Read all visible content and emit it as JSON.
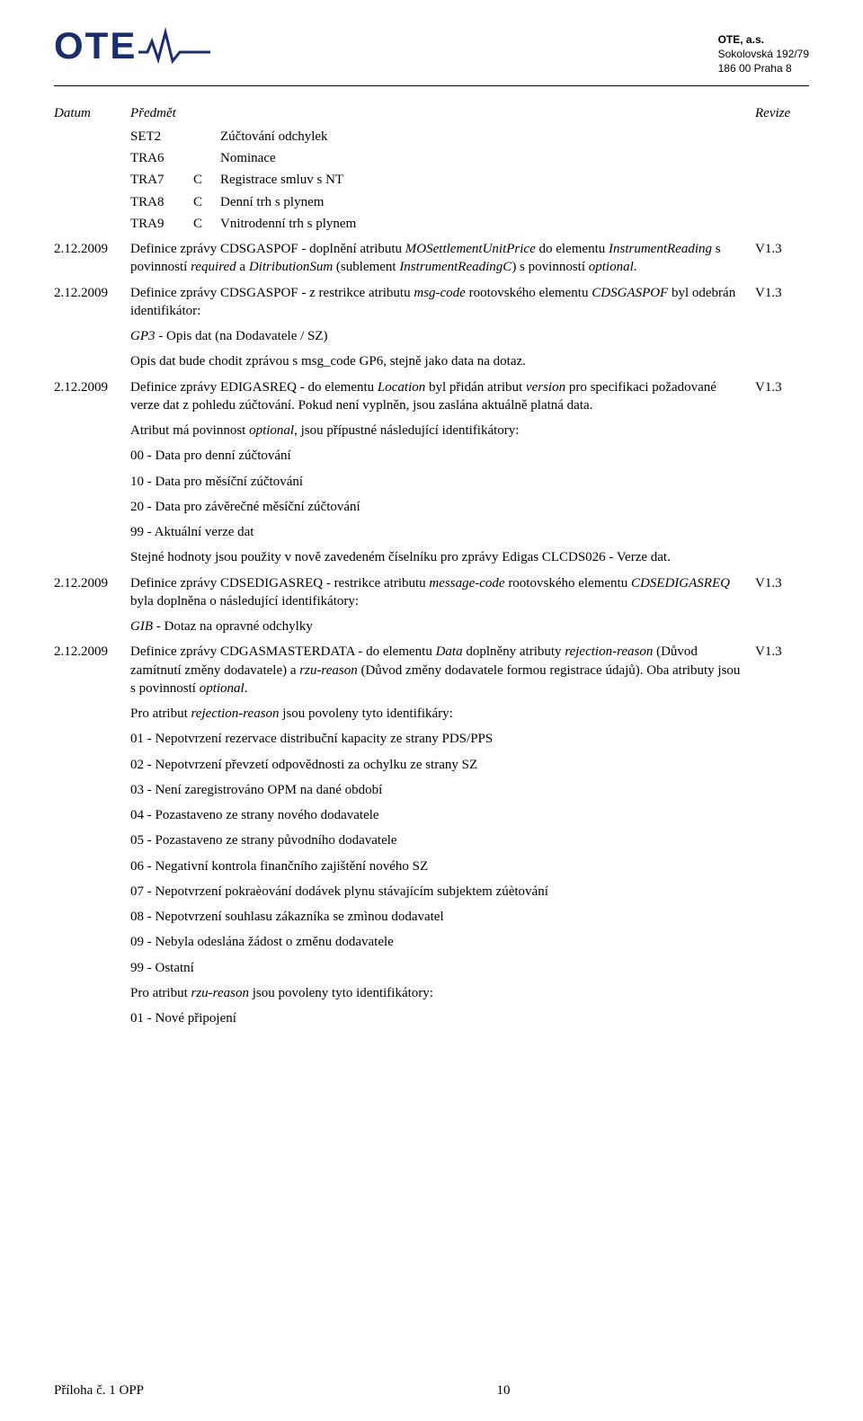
{
  "company": {
    "logo_text": "OTE",
    "name": "OTE, a.s.",
    "address1": "Sokolovská 192/79",
    "address2": "186 00 Praha 8",
    "logo_color": "#1a2e6b"
  },
  "col_headers": {
    "date": "Datum",
    "subject": "Předmět",
    "revision": "Revize"
  },
  "intro_codes": [
    {
      "c1": "SET2",
      "c2": "",
      "c3": "Zúčtování odchylek"
    },
    {
      "c1": "TRA6",
      "c2": "",
      "c3": "Nominace"
    },
    {
      "c1": "TRA7",
      "c2": "C",
      "c3": "Registrace smluv s NT"
    },
    {
      "c1": "TRA8",
      "c2": "C",
      "c3": "Denní trh s plynem"
    },
    {
      "c1": "TRA9",
      "c2": "C",
      "c3": "Vnitrodenní trh s plynem"
    }
  ],
  "entries": [
    {
      "date": "2.12.2009",
      "rev": "V1.3",
      "body_html": "Definice zprávy CDSGASPOF - doplnění atributu <span class=\"it\">MOSettlementUnitPrice</span> do elementu <span class=\"it\">InstrumentReading</span> s povinností <span class=\"it\">required</span> a <span class=\"it\">DitributionSum</span> (sublement <span class=\"it\">InstrumentReadingC</span>) s povinností <span class=\"it\">optional</span>.",
      "paras": []
    },
    {
      "date": "2.12.2009",
      "rev": "V1.3",
      "body_html": "Definice zprávy CDSGASPOF - z restrikce atributu <span class=\"it\">msg-code</span> rootovského elementu <span class=\"it\">CDSGASPOF</span>  byl odebrán identifikátor:",
      "paras": [
        "<span class=\"it\">GP3</span>  - Opis dat (na Dodavatele / SZ)",
        "Opis dat bude chodit zprávou s msg_code GP6, stejně jako data na dotaz."
      ]
    },
    {
      "date": "2.12.2009",
      "rev": "V1.3",
      "body_html": "Definice zprávy EDIGASREQ - do elementu <span class=\"it\">Location</span> byl přidán atribut <span class=\"it\">version</span> pro specifikaci požadované verze dat z pohledu zúčtování. Pokud není vyplněn, jsou zaslána aktuálně platná data.",
      "paras": [
        "Atribut má povinnost <span class=\"it\">optional</span>, jsou přípustné následující identifikátory:",
        "00 - Data pro denní zúčtování",
        "10 - Data pro měsíční zúčtování",
        "20 - Data pro závěrečné měsíční zúčtování",
        "99 - Aktuální verze dat",
        "Stejné hodnoty jsou použity v nově zavedeném číselníku pro zprávy Edigas CLCDS026 - Verze dat."
      ]
    },
    {
      "date": "2.12.2009",
      "rev": "V1.3",
      "body_html": "Definice zprávy CDSEDIGASREQ - restrikce atributu <span class=\"it\">message-code</span> rootovského elementu <span class=\"it\">CDSEDIGASREQ</span> byla doplněna o následující identifikátory:",
      "paras": [
        "<span class=\"it\">GIB</span> - Dotaz na opravné odchylky"
      ]
    },
    {
      "date": "2.12.2009",
      "rev": "V1.3",
      "body_html": "Definice zprávy CDGASMASTERDATA - do elementu <span class=\"it\">Data</span> doplněny atributy <span class=\"it\">rejection-reason</span> (Důvod zamítnutí změny dodavatele) a <span class=\"it\">rzu-reason</span> (Důvod změny dodavatele formou registrace údajů). Oba atributy jsou s povinností <span class=\"it\">optional</span>.",
      "paras": [
        "Pro atribut <span class=\"it\">rejection-reason</span> jsou povoleny tyto identifikáry:",
        "01 - Nepotvrzení rezervace distribuční kapacity ze strany PDS/PPS",
        "02 - Nepotvrzení převzetí odpovědnosti za ochylku ze strany SZ",
        "03 - Není zaregistrováno OPM na dané období",
        "04 - Pozastaveno ze strany nového dodavatele",
        "05 - Pozastaveno ze strany původního dodavatele",
        "06 - Negativní kontrola finančního zajištění nového SZ",
        "07 - Nepotvrzení pokraèování dodávek plynu stávajícím subjektem zúètování",
        "08 - Nepotvrzení souhlasu zákazníka se zmìnou dodavatel",
        "09 - Nebyla odeslána žádost o změnu dodavatele",
        "99 - Ostatní",
        "Pro atribut <span class=\"it\">rzu-reason</span> jsou povoleny tyto identifikátory:",
        "01 - Nové připojení"
      ]
    }
  ],
  "footer": {
    "left": "Příloha č. 1 OPP",
    "page": "10"
  }
}
